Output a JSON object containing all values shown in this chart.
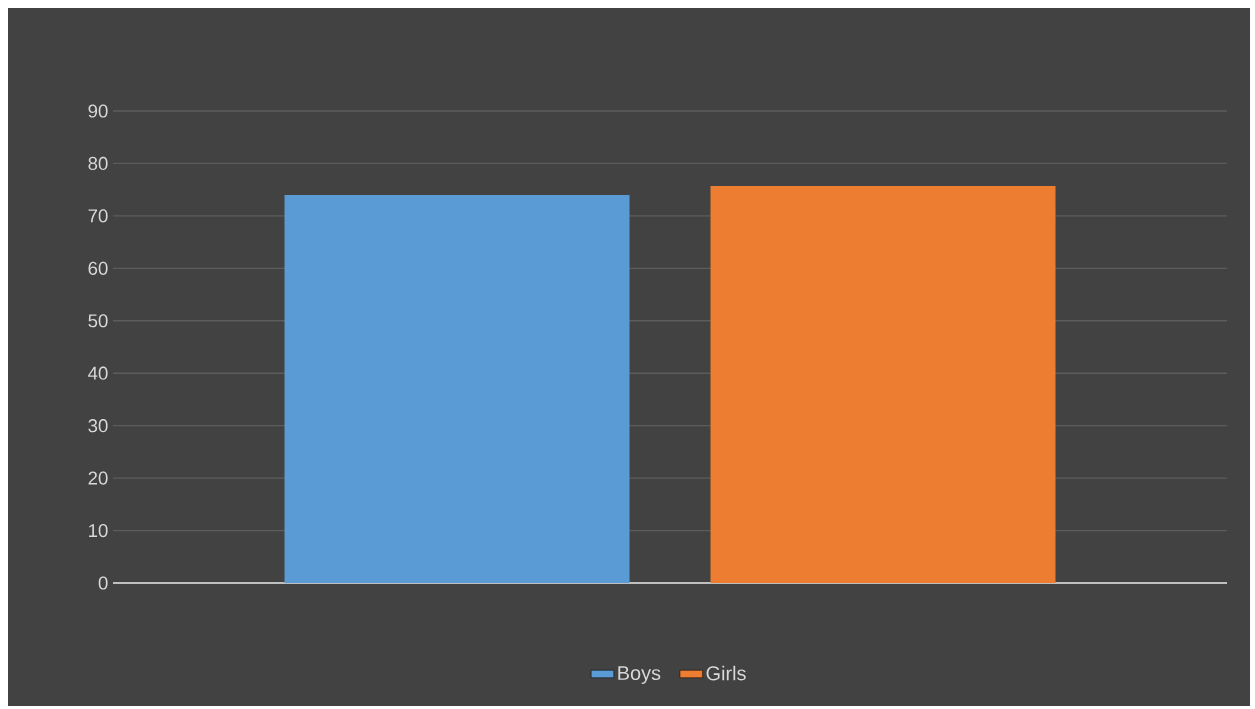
{
  "chart_data": {
    "type": "bar",
    "categories": [
      null
    ],
    "series": [
      {
        "name": "Boys",
        "color": "#5b9bd5",
        "values": [
          74
        ]
      },
      {
        "name": "Girls",
        "color": "#ed7d31",
        "values": [
          75.7
        ]
      }
    ],
    "ylim": [
      0,
      90
    ],
    "yticks": [
      0,
      10,
      20,
      30,
      40,
      50,
      60,
      70,
      80,
      90
    ],
    "grid": "y",
    "legend": "bottom"
  }
}
